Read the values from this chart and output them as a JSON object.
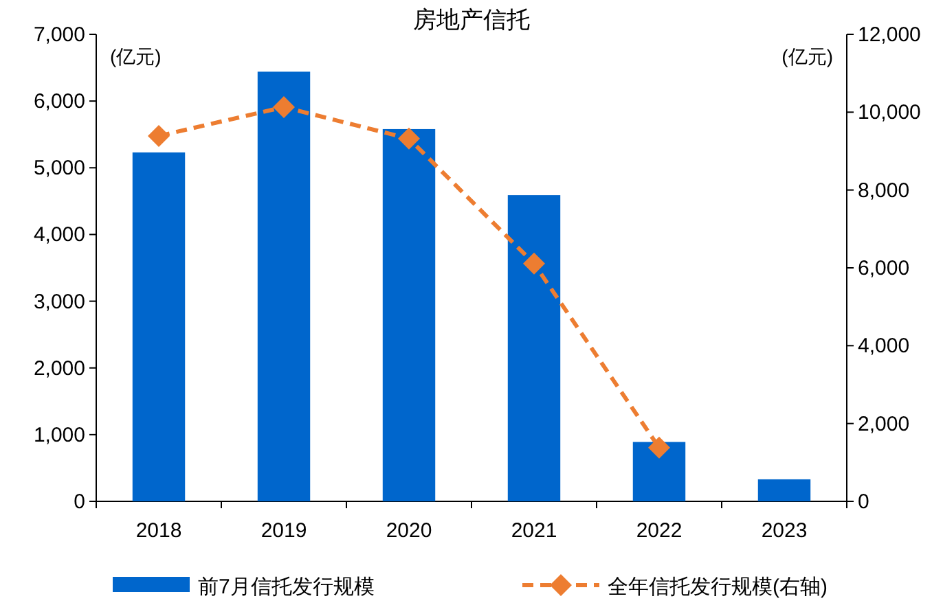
{
  "chart_data": {
    "type": "bar",
    "title": "房地产信托",
    "ylabel": "(亿元)",
    "y2label": "(亿元)",
    "categories": [
      "2018",
      "2019",
      "2020",
      "2021",
      "2022",
      "2023"
    ],
    "series": [
      {
        "name": "前7月信托发行规模",
        "color": "#0066cc",
        "values": [
          5230,
          6440,
          5580,
          4590,
          890,
          330
        ]
      },
      {
        "name": "全年信托发行规模(右轴)",
        "type": "line",
        "axis": "y2",
        "color": "#ed7d31",
        "marker": "diamond",
        "line_style": "dashed",
        "values": [
          9390,
          10130,
          9320,
          6110,
          1380,
          null
        ]
      }
    ],
    "ylim": [
      0,
      7000
    ],
    "yticks": [
      {
        "value": 0,
        "label": "0"
      },
      {
        "value": 1000,
        "label": "1,000"
      },
      {
        "value": 2000,
        "label": "2,000"
      },
      {
        "value": 3000,
        "label": "3,000"
      },
      {
        "value": 4000,
        "label": "4,000"
      },
      {
        "value": 5000,
        "label": "5,000"
      },
      {
        "value": 6000,
        "label": "6,000"
      },
      {
        "value": 7000,
        "label": "7,000"
      }
    ],
    "y2lim": [
      0,
      12000
    ],
    "y2ticks": [
      {
        "value": 0,
        "label": "0"
      },
      {
        "value": 2000,
        "label": "2,000"
      },
      {
        "value": 4000,
        "label": "4,000"
      },
      {
        "value": 6000,
        "label": "6,000"
      },
      {
        "value": 8000,
        "label": "8,000"
      },
      {
        "value": 10000,
        "label": "10,000"
      },
      {
        "value": 12000,
        "label": "12,000"
      }
    ],
    "legend": "bottom",
    "grid": false
  }
}
